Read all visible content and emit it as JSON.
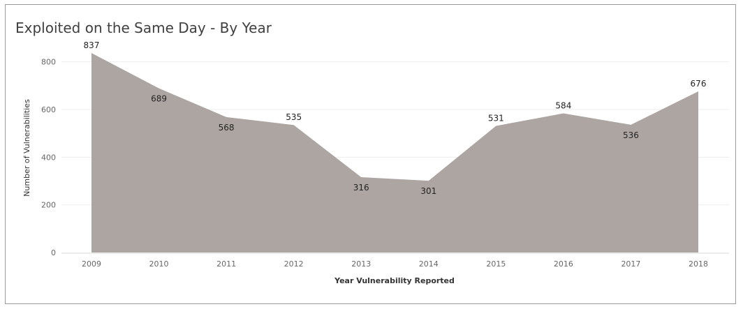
{
  "chart_data": {
    "type": "area",
    "title": "Exploited on the Same Day - By Year",
    "xlabel": "Year Vulnerability Reported",
    "ylabel": "Number of Vulnerabilities",
    "categories": [
      "2009",
      "2010",
      "2011",
      "2012",
      "2013",
      "2014",
      "2015",
      "2016",
      "2017",
      "2018"
    ],
    "series": [
      {
        "values": [
          837,
          689,
          568,
          535,
          316,
          301,
          531,
          584,
          536,
          676
        ],
        "data_labels": [
          "837",
          "689",
          "568",
          "535",
          "316",
          "301",
          "531",
          "584",
          "536",
          "676"
        ],
        "label_placement": [
          "above",
          "below",
          "below",
          "above",
          "below",
          "below",
          "above",
          "above",
          "below",
          "above"
        ]
      }
    ],
    "ylim": [
      0,
      837
    ],
    "y_ticks": [
      "0",
      "200",
      "400",
      "600",
      "800"
    ],
    "grid": "horizontal",
    "colors": {
      "area": "#ada5a2",
      "grid": "#eeeeee",
      "axis": "#d8d8d8"
    }
  }
}
